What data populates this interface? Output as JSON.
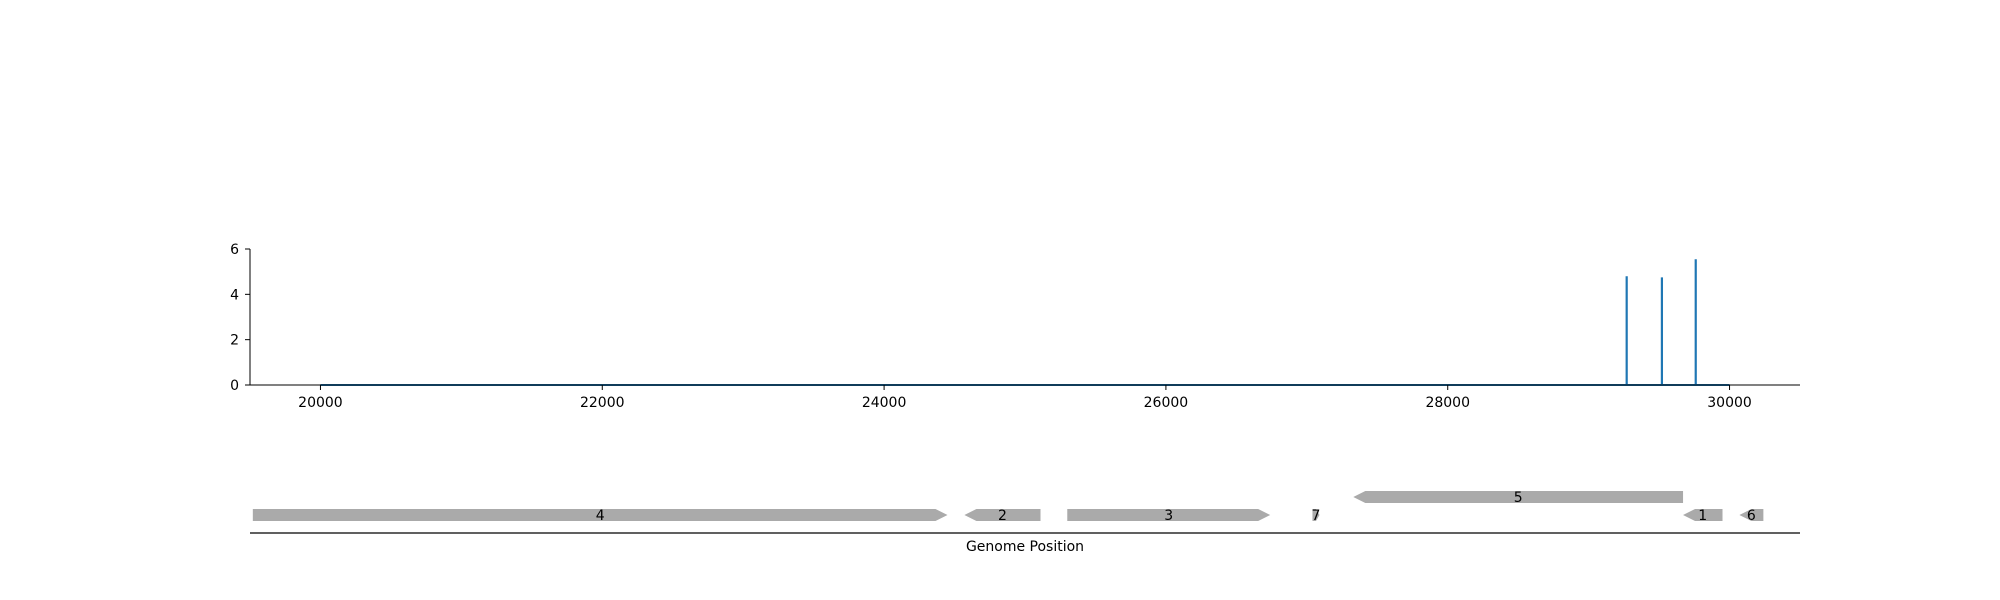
{
  "chart_data": [
    {
      "type": "line",
      "title": "",
      "xlabel": "",
      "ylabel": "",
      "xlim": [
        19500,
        30500
      ],
      "ylim": [
        0,
        6
      ],
      "xticks": [
        20000,
        22000,
        24000,
        26000,
        28000,
        30000
      ],
      "yticks": [
        0,
        2,
        4,
        6
      ],
      "grid": false,
      "line_color": "#1f77b4",
      "baseline": {
        "x_start": 20000,
        "x_end": 30000,
        "y": 0
      },
      "spikes": [
        {
          "x": 29270,
          "y": 4.8
        },
        {
          "x": 29520,
          "y": 4.75
        },
        {
          "x": 29760,
          "y": 5.55
        }
      ]
    },
    {
      "type": "gene_track",
      "xlabel": "Genome Position",
      "xlim": [
        19500,
        30500
      ],
      "feature_color": "#aaaaaa",
      "features": [
        {
          "label": "4",
          "start": 19520,
          "end": 24450,
          "strand": "+",
          "row": 0
        },
        {
          "label": "2",
          "start": 24570,
          "end": 25110,
          "strand": "-",
          "row": 0
        },
        {
          "label": "3",
          "start": 25300,
          "end": 26740,
          "strand": "+",
          "row": 0
        },
        {
          "label": "7",
          "start": 27040,
          "end": 27090,
          "strand": "+",
          "row": 0
        },
        {
          "label": "5",
          "start": 27330,
          "end": 29670,
          "strand": "-",
          "row": 1
        },
        {
          "label": "1",
          "start": 29670,
          "end": 29950,
          "strand": "-",
          "row": 0
        },
        {
          "label": "6",
          "start": 30070,
          "end": 30240,
          "strand": "-",
          "row": 0
        }
      ]
    }
  ]
}
